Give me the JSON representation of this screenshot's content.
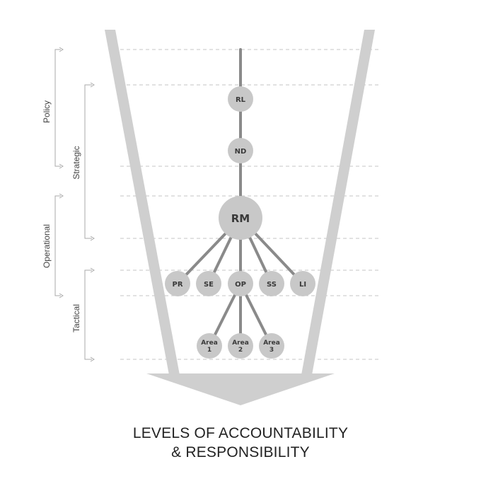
{
  "title": {
    "line1": "LEVELS OF ACCOUNTABILITY",
    "line2": "& RESPONSIBILITY"
  },
  "brackets": {
    "policy": "Policy",
    "strategic": "Strategic",
    "operational": "Operational",
    "tactical": "Tactical"
  },
  "nodes": {
    "rl": "RL",
    "nd": "ND",
    "rm": "RM",
    "pr": "PR",
    "se": "SE",
    "op": "OP",
    "ss": "SS",
    "li": "LI",
    "area1": {
      "line1": "Area",
      "line2": "1"
    },
    "area2": {
      "line1": "Area",
      "line2": "2"
    },
    "area3": {
      "line1": "Area",
      "line2": "3"
    }
  },
  "colors": {
    "funnel": "#cfcfcf",
    "node": "#c8c8c8",
    "connector": "#8a8a8a",
    "guide": "#c4c4c4"
  }
}
